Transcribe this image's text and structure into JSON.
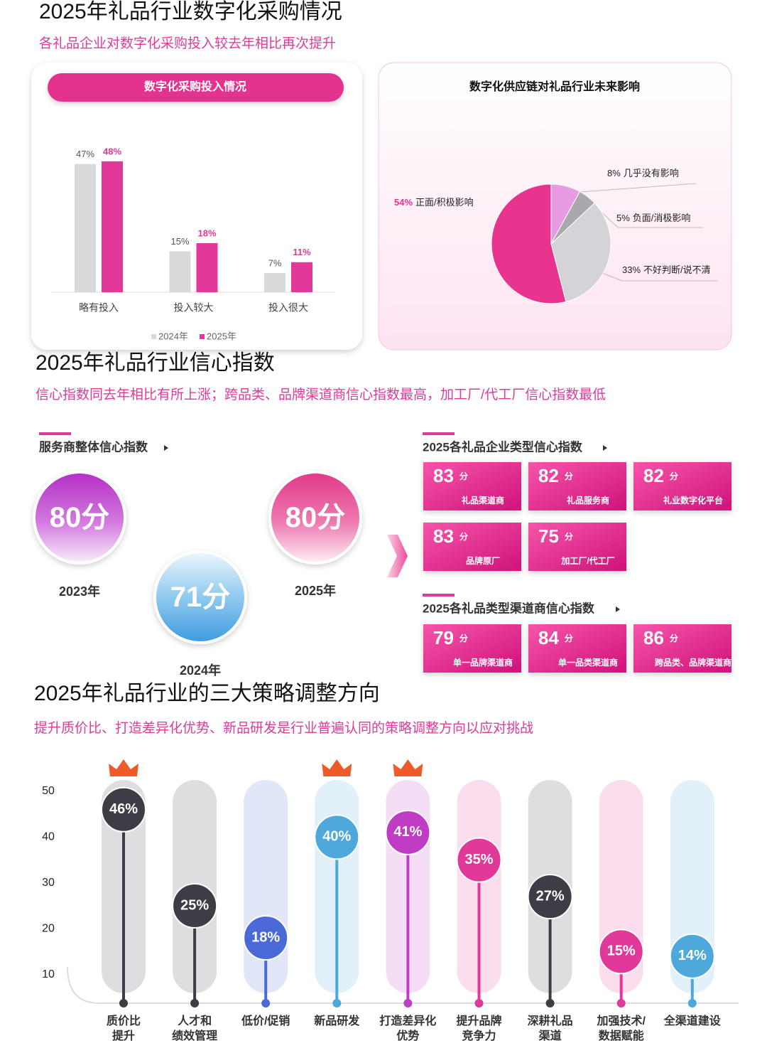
{
  "digital": {
    "title": "2025年礼品行业数字化采购情况",
    "subtitle": "各礼品企业对数字化采购投入较去年相比再次提升"
  },
  "chart_data": [
    {
      "type": "bar",
      "title": "数字化采购投入情况",
      "categories": [
        "略有投入",
        "投入较大",
        "投入很大"
      ],
      "series": [
        {
          "name": "2024年",
          "color": "#d9d9dc",
          "values": [
            47,
            15,
            7
          ],
          "value_labels": [
            "47%",
            "15%",
            "7%"
          ]
        },
        {
          "name": "2025年",
          "color": "#e0399a",
          "values": [
            48,
            18,
            11
          ],
          "value_labels": [
            "48%",
            "18%",
            "11%"
          ]
        }
      ],
      "ylim": [
        0,
        55
      ]
    },
    {
      "type": "pie",
      "title": "数字化供应链对礼品行业未来影响",
      "categories": [
        "几乎没有影响",
        "负面/消极影响",
        "不好判断/说不清",
        "正面/积极影响"
      ],
      "values": [
        8,
        5,
        33,
        54
      ],
      "value_labels": [
        "8%",
        "5%",
        "33%",
        "54%"
      ],
      "colors": [
        "#e79ce2",
        "#a8a8ad",
        "#d4d4d8",
        "#e8338f"
      ]
    },
    {
      "type": "lollipop",
      "title": "2025年礼品行业的三大策略调整方向",
      "subtitle": "提升质价比、打造差异化优势、新品研发是行业普遍认同的策略调整方向以应对挑战",
      "categories": [
        "质价比\n提升",
        "人才和\n绩效管理",
        "低价/促销",
        "新品研发",
        "打造差异化\n优势",
        "提升品牌\n竞争力",
        "深耕礼品\n渠道",
        "加强技术/\n数据赋能",
        "全渠道建设"
      ],
      "values": [
        46,
        25,
        18,
        40,
        41,
        35,
        27,
        15,
        14
      ],
      "value_labels": [
        "46%",
        "25%",
        "18%",
        "40%",
        "41%",
        "35%",
        "27%",
        "15%",
        "14%"
      ],
      "colors": [
        "#3e3d45",
        "#3e3d45",
        "#4b6ad8",
        "#4fa8dc",
        "#c13cc5",
        "#e0399a",
        "#3e3d45",
        "#e0399a",
        "#4fa8dc"
      ],
      "ylim": [
        0,
        50
      ],
      "yticks": [
        10,
        20,
        30,
        40,
        50
      ]
    }
  ],
  "confidence": {
    "title": "2025年礼品行业信心指数",
    "subtitle": "信心指数同去年相比有所上涨；跨品类、品牌渠道商信心指数最高，加工厂/代工厂信心指数最低",
    "unit": "分",
    "overall": {
      "title": "服务商整体信心指数",
      "items": [
        {
          "year": "2023年",
          "score": 80
        },
        {
          "year": "2024年",
          "score": 71
        },
        {
          "year": "2025年",
          "score": 80
        }
      ]
    },
    "enterprise": {
      "title": "2025各礼品企业类型信心指数",
      "items": [
        {
          "score": 83,
          "name": "礼品渠道商"
        },
        {
          "score": 82,
          "name": "礼品服务商"
        },
        {
          "score": 82,
          "name": "礼业数字化平台"
        },
        {
          "score": 83,
          "name": "品牌原厂"
        },
        {
          "score": 75,
          "name": "加工厂/代工厂"
        }
      ]
    },
    "channel": {
      "title": "2025各礼品类型渠道商信心指数",
      "items": [
        {
          "score": 79,
          "name": "单一品牌渠道商"
        },
        {
          "score": 84,
          "name": "单一品类渠道商"
        },
        {
          "score": 86,
          "name": "跨品类、品牌渠道商"
        }
      ]
    }
  }
}
